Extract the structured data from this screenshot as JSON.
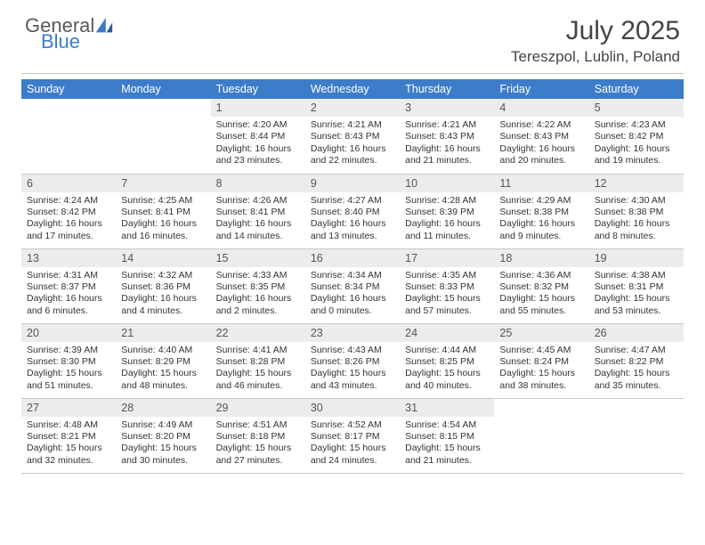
{
  "logo": {
    "text1": "General",
    "text2": "Blue"
  },
  "title": "July 2025",
  "location": "Tereszpol, Lublin, Poland",
  "colors": {
    "header_bg": "#3d7cc9",
    "daynum_bg": "#ececec",
    "rule": "#c8c8c8",
    "text": "#333333",
    "logo_gray": "#5a5a5a",
    "logo_blue": "#3d7cc9"
  },
  "daysOfWeek": [
    "Sunday",
    "Monday",
    "Tuesday",
    "Wednesday",
    "Thursday",
    "Friday",
    "Saturday"
  ],
  "firstDayOffset": 2,
  "days": [
    {
      "n": 1,
      "sunrise": "4:20 AM",
      "sunset": "8:44 PM",
      "daylight": "16 hours and 23 minutes."
    },
    {
      "n": 2,
      "sunrise": "4:21 AM",
      "sunset": "8:43 PM",
      "daylight": "16 hours and 22 minutes."
    },
    {
      "n": 3,
      "sunrise": "4:21 AM",
      "sunset": "8:43 PM",
      "daylight": "16 hours and 21 minutes."
    },
    {
      "n": 4,
      "sunrise": "4:22 AM",
      "sunset": "8:43 PM",
      "daylight": "16 hours and 20 minutes."
    },
    {
      "n": 5,
      "sunrise": "4:23 AM",
      "sunset": "8:42 PM",
      "daylight": "16 hours and 19 minutes."
    },
    {
      "n": 6,
      "sunrise": "4:24 AM",
      "sunset": "8:42 PM",
      "daylight": "16 hours and 17 minutes."
    },
    {
      "n": 7,
      "sunrise": "4:25 AM",
      "sunset": "8:41 PM",
      "daylight": "16 hours and 16 minutes."
    },
    {
      "n": 8,
      "sunrise": "4:26 AM",
      "sunset": "8:41 PM",
      "daylight": "16 hours and 14 minutes."
    },
    {
      "n": 9,
      "sunrise": "4:27 AM",
      "sunset": "8:40 PM",
      "daylight": "16 hours and 13 minutes."
    },
    {
      "n": 10,
      "sunrise": "4:28 AM",
      "sunset": "8:39 PM",
      "daylight": "16 hours and 11 minutes."
    },
    {
      "n": 11,
      "sunrise": "4:29 AM",
      "sunset": "8:38 PM",
      "daylight": "16 hours and 9 minutes."
    },
    {
      "n": 12,
      "sunrise": "4:30 AM",
      "sunset": "8:38 PM",
      "daylight": "16 hours and 8 minutes."
    },
    {
      "n": 13,
      "sunrise": "4:31 AM",
      "sunset": "8:37 PM",
      "daylight": "16 hours and 6 minutes."
    },
    {
      "n": 14,
      "sunrise": "4:32 AM",
      "sunset": "8:36 PM",
      "daylight": "16 hours and 4 minutes."
    },
    {
      "n": 15,
      "sunrise": "4:33 AM",
      "sunset": "8:35 PM",
      "daylight": "16 hours and 2 minutes."
    },
    {
      "n": 16,
      "sunrise": "4:34 AM",
      "sunset": "8:34 PM",
      "daylight": "16 hours and 0 minutes."
    },
    {
      "n": 17,
      "sunrise": "4:35 AM",
      "sunset": "8:33 PM",
      "daylight": "15 hours and 57 minutes."
    },
    {
      "n": 18,
      "sunrise": "4:36 AM",
      "sunset": "8:32 PM",
      "daylight": "15 hours and 55 minutes."
    },
    {
      "n": 19,
      "sunrise": "4:38 AM",
      "sunset": "8:31 PM",
      "daylight": "15 hours and 53 minutes."
    },
    {
      "n": 20,
      "sunrise": "4:39 AM",
      "sunset": "8:30 PM",
      "daylight": "15 hours and 51 minutes."
    },
    {
      "n": 21,
      "sunrise": "4:40 AM",
      "sunset": "8:29 PM",
      "daylight": "15 hours and 48 minutes."
    },
    {
      "n": 22,
      "sunrise": "4:41 AM",
      "sunset": "8:28 PM",
      "daylight": "15 hours and 46 minutes."
    },
    {
      "n": 23,
      "sunrise": "4:43 AM",
      "sunset": "8:26 PM",
      "daylight": "15 hours and 43 minutes."
    },
    {
      "n": 24,
      "sunrise": "4:44 AM",
      "sunset": "8:25 PM",
      "daylight": "15 hours and 40 minutes."
    },
    {
      "n": 25,
      "sunrise": "4:45 AM",
      "sunset": "8:24 PM",
      "daylight": "15 hours and 38 minutes."
    },
    {
      "n": 26,
      "sunrise": "4:47 AM",
      "sunset": "8:22 PM",
      "daylight": "15 hours and 35 minutes."
    },
    {
      "n": 27,
      "sunrise": "4:48 AM",
      "sunset": "8:21 PM",
      "daylight": "15 hours and 32 minutes."
    },
    {
      "n": 28,
      "sunrise": "4:49 AM",
      "sunset": "8:20 PM",
      "daylight": "15 hours and 30 minutes."
    },
    {
      "n": 29,
      "sunrise": "4:51 AM",
      "sunset": "8:18 PM",
      "daylight": "15 hours and 27 minutes."
    },
    {
      "n": 30,
      "sunrise": "4:52 AM",
      "sunset": "8:17 PM",
      "daylight": "15 hours and 24 minutes."
    },
    {
      "n": 31,
      "sunrise": "4:54 AM",
      "sunset": "8:15 PM",
      "daylight": "15 hours and 21 minutes."
    }
  ],
  "labels": {
    "sunrise": "Sunrise:",
    "sunset": "Sunset:",
    "daylight": "Daylight:"
  }
}
